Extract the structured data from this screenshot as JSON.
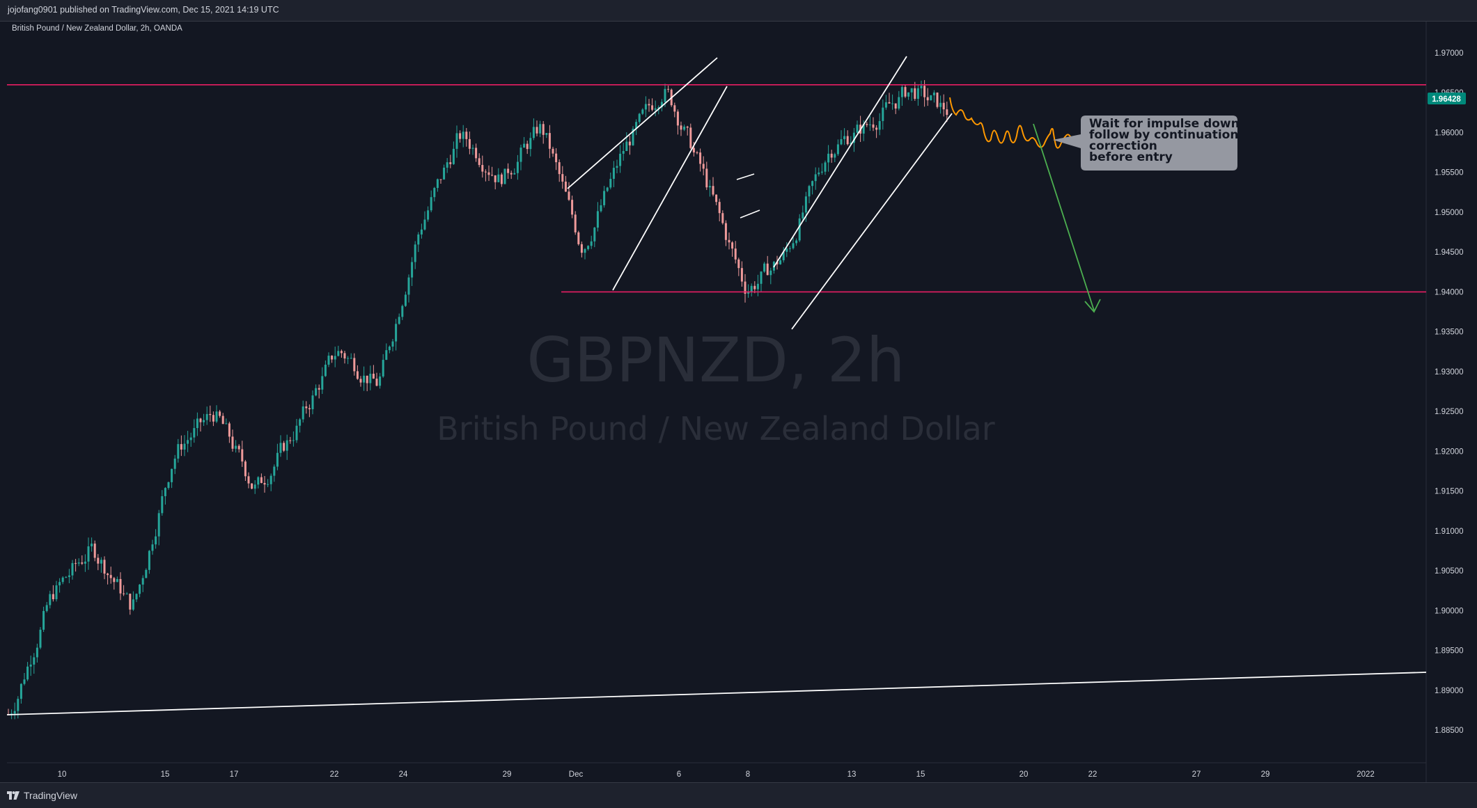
{
  "header": {
    "published": "jojofang0901 published on TradingView.com, Dec 15, 2021 14:19 UTC",
    "symbol_desc": "British Pound / New Zealand Dollar, 2h, OANDA"
  },
  "footer": {
    "brand": "TradingView"
  },
  "watermark": {
    "symbol": "GBPNZD, 2h",
    "name": "British Pound / New Zealand Dollar"
  },
  "annotation": {
    "lines": [
      "Wait for impulse down",
      "follow by continuation",
      "correction",
      "before entry"
    ]
  },
  "price_label": "1.96428",
  "colors": {
    "background": "#131722",
    "up": "#26a69a",
    "down": "#ef9a9a",
    "level": "#e91e63",
    "trendline": "#ffffff",
    "forecast": "#ff9800",
    "arrow": "#4caf50",
    "price_tag": "#00897b",
    "callout": "#9598a1"
  },
  "chart_data": {
    "type": "candlestick",
    "symbol": "GBPNZD",
    "interval": "2h",
    "exchange": "OANDA",
    "y_ticks": [
      "1.97000",
      "1.96500",
      "1.96000",
      "1.95500",
      "1.95000",
      "1.94500",
      "1.94000",
      "1.93500",
      "1.93000",
      "1.92500",
      "1.92000",
      "1.91500",
      "1.91000",
      "1.90500",
      "1.90000",
      "1.89500",
      "1.89000",
      "1.88500"
    ],
    "x_ticks": [
      "10",
      "15",
      "17",
      "22",
      "24",
      "29",
      "Dec",
      "6",
      "8",
      "13",
      "15",
      "20",
      "22",
      "27",
      "29",
      "2022"
    ],
    "ylim": [
      1.882,
      1.9745
    ],
    "last_price": 1.96428,
    "horizontal_levels": [
      1.966,
      1.94
    ],
    "path": [
      [
        "10",
        1.887
      ],
      [
        "10",
        1.902
      ],
      [
        "15",
        1.908
      ],
      [
        "15",
        1.9
      ],
      [
        "17",
        1.92
      ],
      [
        "17",
        1.925
      ],
      [
        "22",
        1.915
      ],
      [
        "22",
        1.923
      ],
      [
        "24",
        1.933
      ],
      [
        "24",
        1.928
      ],
      [
        "24",
        1.948
      ],
      [
        "29",
        1.96
      ],
      [
        "29",
        1.954
      ],
      [
        "Dec",
        1.961
      ],
      [
        "Dec",
        1.945
      ],
      [
        "6",
        1.958
      ],
      [
        "6",
        1.966
      ],
      [
        "8",
        1.954
      ],
      [
        "8",
        1.94
      ],
      [
        "13",
        1.945
      ],
      [
        "13",
        1.958
      ],
      [
        "15",
        1.961
      ],
      [
        "15",
        1.9655
      ],
      [
        "15",
        1.9625
      ]
    ]
  }
}
